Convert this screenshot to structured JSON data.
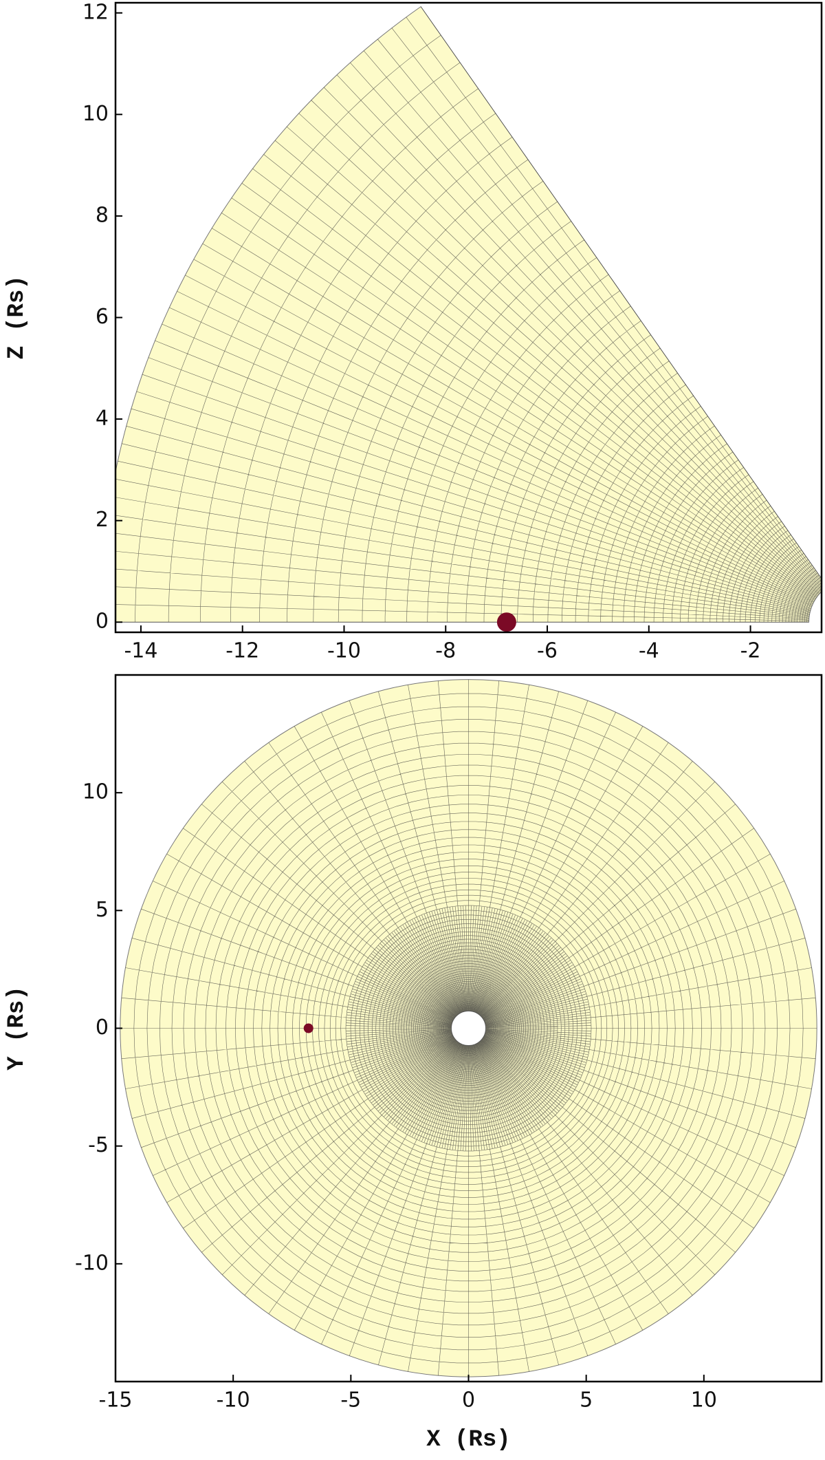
{
  "chart_data": [
    {
      "type": "scatter",
      "ylabel": "Z (Rs)",
      "xlim": [
        -14.5,
        -0.6
      ],
      "ylim": [
        -0.2,
        12.2
      ],
      "xticks": [
        -14,
        -12,
        -10,
        -8,
        -6,
        -4,
        -2
      ],
      "yticks": [
        0,
        2,
        4,
        6,
        8,
        10,
        12
      ],
      "mesh": {
        "color": "#fdfbc9",
        "r": [
          0.85,
          14.8
        ],
        "theta": [
          0,
          55
        ]
      },
      "series": [
        {
          "color": "#7b0a26",
          "x": [
            -6.8
          ],
          "y": [
            0
          ]
        }
      ]
    },
    {
      "type": "scatter",
      "xlabel": "X (Rs)",
      "ylabel": "Y (Rs)",
      "xlim": [
        -15,
        15
      ],
      "ylim": [
        -15,
        15
      ],
      "xticks": [
        -15,
        -10,
        -5,
        0,
        5,
        10
      ],
      "yticks": [
        -10,
        -5,
        0,
        5,
        10
      ],
      "mesh": {
        "color": "#fdfbc9",
        "r": [
          0.73,
          14.8
        ],
        "theta": [
          0,
          360
        ]
      },
      "series": [
        {
          "color": "#7b0a26",
          "x": [
            -6.8
          ],
          "y": [
            0
          ]
        }
      ]
    }
  ]
}
